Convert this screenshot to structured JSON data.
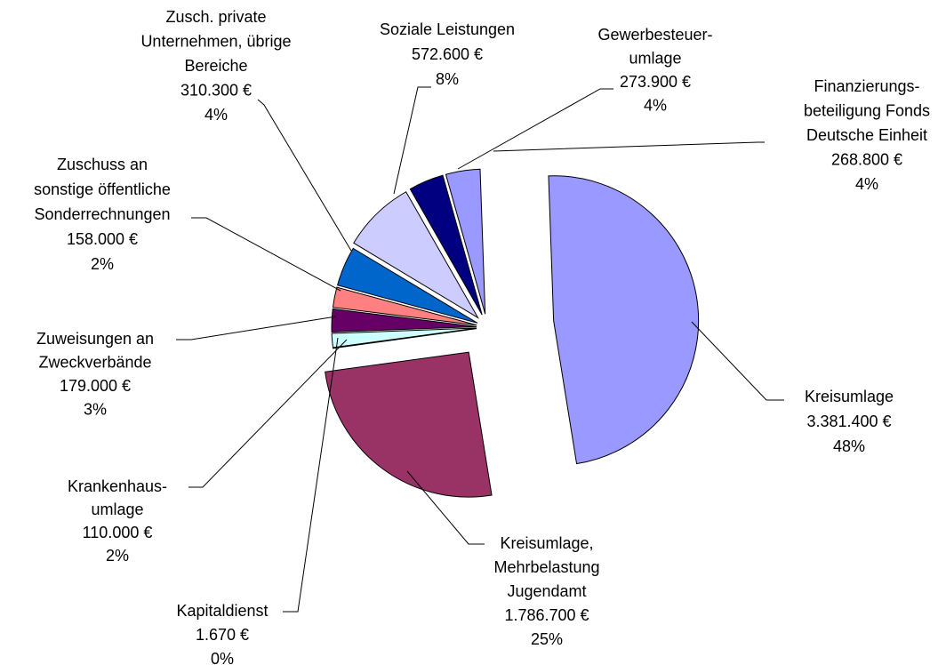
{
  "chart_data": {
    "type": "pie",
    "labels": [
      [
        "Kreisumlage"
      ],
      [
        "Kreisumlage,",
        "Mehrbelastung",
        "Jugendamt"
      ],
      [
        "Kapitaldienst"
      ],
      [
        "Krankenhaus-",
        "umlage"
      ],
      [
        "Zuweisungen an",
        "Zweckverbände"
      ],
      [
        "Zuschuss an",
        "sonstige öffentliche",
        "Sonderrechnungen"
      ],
      [
        "Zusch. private",
        "Unternehmen, übrige",
        "Bereiche"
      ],
      [
        "Soziale Leistungen"
      ],
      [
        "Gewerbesteuer-",
        "umlage"
      ],
      [
        "Finanzierungs-",
        "beteiligung Fonds",
        "Deutsche Einheit"
      ]
    ],
    "values": [
      3381400,
      1786700,
      1670,
      110000,
      179000,
      158000,
      310300,
      572600,
      273900,
      268800
    ],
    "value_labels": [
      "3.381.400 €",
      "1.786.700 €",
      "1.670 €",
      "110.000 €",
      "179.000 €",
      "158.000 €",
      "310.300 €",
      "572.600 €",
      "273.900 €",
      "268.800 €"
    ],
    "percent_labels": [
      "48%",
      "25%",
      "0%",
      "2%",
      "3%",
      "2%",
      "4%",
      "8%",
      "4%",
      "4%"
    ],
    "colors": [
      "#9999ff",
      "#993366",
      "#ffffcc",
      "#ccffff",
      "#660066",
      "#ff8080",
      "#0066cc",
      "#ccccff",
      "#000080",
      "#9999ff"
    ]
  }
}
